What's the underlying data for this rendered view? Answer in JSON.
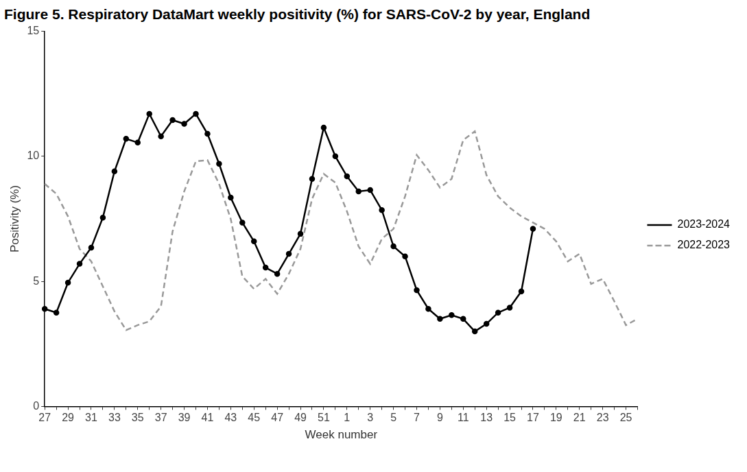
{
  "chart_data": {
    "type": "line",
    "title": "Figure 5. Respiratory DataMart weekly positivity (%) for SARS-CoV-2 by year, England",
    "x_label": "Week number",
    "y_label": "Positivity (%)",
    "categories": [
      "27",
      null,
      "29",
      null,
      "31",
      null,
      "33",
      null,
      "35",
      null,
      "37",
      null,
      "39",
      null,
      "41",
      null,
      "43",
      null,
      "45",
      null,
      "47",
      null,
      "49",
      null,
      "51",
      null,
      "1",
      null,
      "3",
      null,
      "5",
      null,
      "7",
      null,
      "9",
      null,
      "11",
      null,
      "13",
      null,
      "15",
      null,
      "17",
      null,
      "19",
      null,
      "21",
      null,
      "23",
      null,
      "25",
      null
    ],
    "series": [
      {
        "name": "2023-2024",
        "color": "#000000",
        "marker": "circle",
        "line_style": "solid",
        "values": [
          3.9,
          3.75,
          4.95,
          5.7,
          6.35,
          7.55,
          9.4,
          10.7,
          10.55,
          11.7,
          10.8,
          11.45,
          11.3,
          11.7,
          10.9,
          9.7,
          8.35,
          7.35,
          6.6,
          5.55,
          5.3,
          6.1,
          6.9,
          9.1,
          11.15,
          10.0,
          9.2,
          8.6,
          8.65,
          7.85,
          6.4,
          6.0,
          4.65,
          3.9,
          3.5,
          3.65,
          3.5,
          3.0,
          3.3,
          3.75,
          3.95,
          4.6,
          7.1,
          null,
          null,
          null,
          null,
          null,
          null,
          null,
          null,
          null
        ]
      },
      {
        "name": "2022-2023",
        "color": "#999999",
        "marker": "none",
        "line_style": "dashed",
        "values": [
          8.9,
          8.5,
          7.6,
          6.3,
          5.8,
          4.8,
          3.8,
          3.05,
          3.25,
          3.4,
          4.0,
          7.0,
          8.6,
          9.8,
          9.85,
          8.9,
          7.5,
          5.2,
          4.7,
          5.1,
          4.5,
          5.3,
          6.3,
          8.3,
          9.3,
          8.95,
          7.8,
          6.4,
          5.7,
          6.7,
          7.1,
          8.4,
          10.05,
          9.45,
          8.75,
          9.1,
          10.65,
          11.0,
          9.25,
          8.4,
          7.95,
          7.6,
          7.35,
          7.1,
          6.6,
          5.8,
          6.1,
          4.9,
          5.1,
          4.2,
          3.25,
          3.5
        ]
      }
    ],
    "ylim": [
      0,
      15
    ],
    "yticks": [
      0,
      5,
      10,
      15
    ],
    "grid": false,
    "legend": "right"
  }
}
